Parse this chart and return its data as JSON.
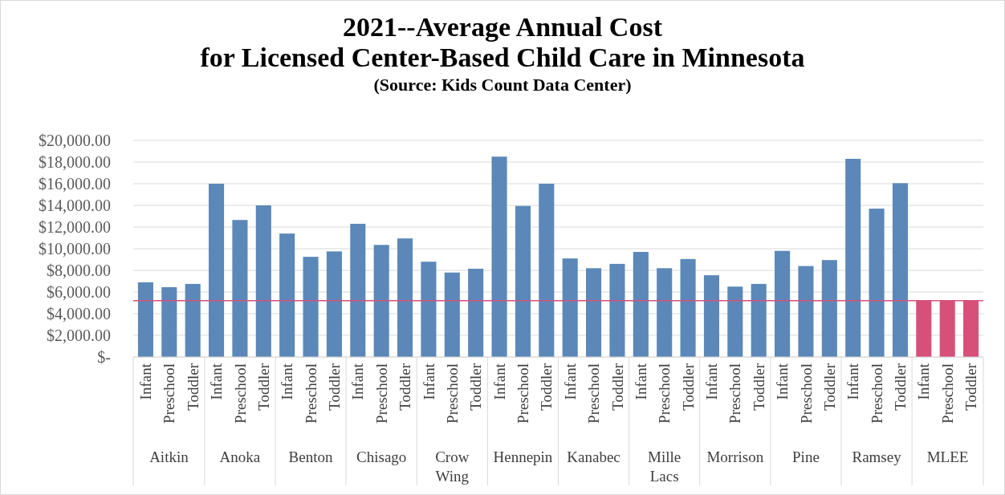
{
  "chart_data": {
    "type": "bar",
    "title": "2021--Average Annual Cost\nfor Licensed Center-Based Child Care in Minnesota",
    "subtitle": "(Source: Kids Count Data Center)",
    "categories": [
      "Infant",
      "Preschool",
      "Toddler",
      "Infant",
      "Preschool",
      "Toddler",
      "Infant",
      "Preschool",
      "Toddler",
      "Infant",
      "Preschool",
      "Toddler",
      "Infant",
      "Preschool",
      "Toddler",
      "Infant",
      "Preschool",
      "Toddler",
      "Infant",
      "Preschool",
      "Toddler",
      "Infant",
      "Preschool",
      "Toddler",
      "Infant",
      "Preschool",
      "Toddler",
      "Infant",
      "Preschool",
      "Toddler",
      "Infant",
      "Preschool",
      "Toddler",
      "Infant",
      "Preschool",
      "Toddler"
    ],
    "values": [
      6900,
      6450,
      6750,
      16000,
      12650,
      14000,
      11400,
      9250,
      9750,
      12300,
      10350,
      10950,
      8800,
      7800,
      8150,
      18500,
      13950,
      16000,
      9100,
      8200,
      8600,
      9700,
      8200,
      9050,
      7550,
      6500,
      6750,
      9800,
      8400,
      8950,
      18300,
      13700,
      16050,
      5200,
      5200,
      5200
    ],
    "colors": [
      "#5b88b8",
      "#5b88b8",
      "#5b88b8",
      "#5b88b8",
      "#5b88b8",
      "#5b88b8",
      "#5b88b8",
      "#5b88b8",
      "#5b88b8",
      "#5b88b8",
      "#5b88b8",
      "#5b88b8",
      "#5b88b8",
      "#5b88b8",
      "#5b88b8",
      "#5b88b8",
      "#5b88b8",
      "#5b88b8",
      "#5b88b8",
      "#5b88b8",
      "#5b88b8",
      "#5b88b8",
      "#5b88b8",
      "#5b88b8",
      "#5b88b8",
      "#5b88b8",
      "#5b88b8",
      "#5b88b8",
      "#5b88b8",
      "#5b88b8",
      "#5b88b8",
      "#5b88b8",
      "#5b88b8",
      "#d6507a",
      "#d6507a",
      "#d6507a"
    ],
    "annotations": [
      "Aitkin",
      "Anoka",
      "Benton",
      "Chisago",
      "Crow Wing",
      "Hennepin",
      "Kanabec",
      "Mille Lacs",
      "Morrison",
      "Pine",
      "Ramsey",
      "MLEE"
    ],
    "ylim": [
      0,
      20000
    ],
    "yticks": [
      {
        "value": 0,
        "label": "$-"
      },
      {
        "value": 2000,
        "label": "$2,000.00"
      },
      {
        "value": 4000,
        "label": "$4,000.00"
      },
      {
        "value": 6000,
        "label": "$6,000.00"
      },
      {
        "value": 8000,
        "label": "$8,000.00"
      },
      {
        "value": 10000,
        "label": "$10,000.00"
      },
      {
        "value": 12000,
        "label": "$12,000.00"
      },
      {
        "value": 14000,
        "label": "$14,000.00"
      },
      {
        "value": 16000,
        "label": "$16,000.00"
      },
      {
        "value": 18000,
        "label": "$18,000.00"
      },
      {
        "value": 20000,
        "label": "$20,000.00"
      }
    ],
    "ref_lines": [
      {
        "axis": "y",
        "value": 5200,
        "color": "#d6507a"
      }
    ],
    "grid": "y"
  }
}
